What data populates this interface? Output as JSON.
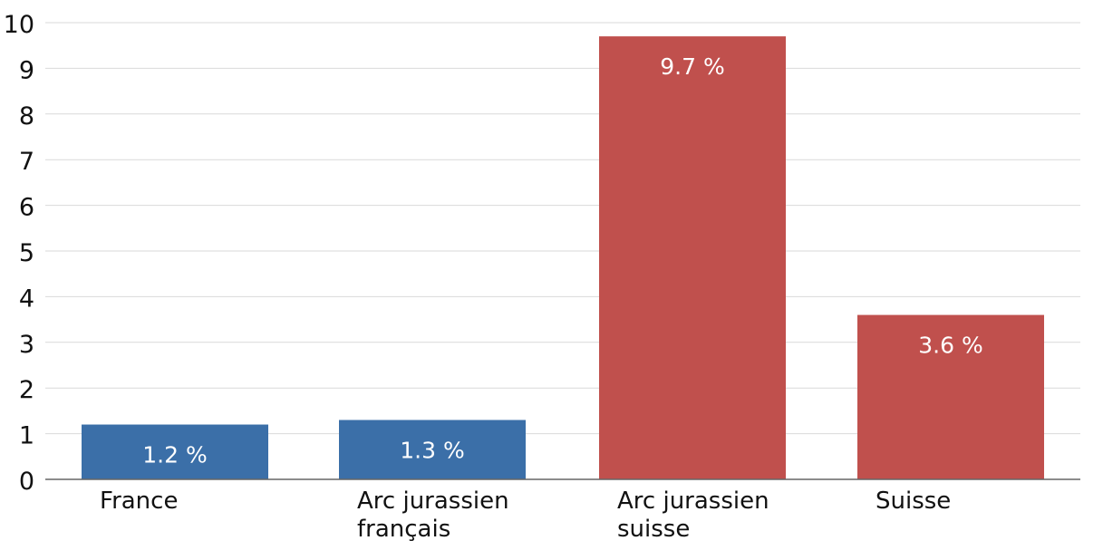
{
  "chart_data": {
    "type": "bar",
    "categories": [
      [
        "France"
      ],
      [
        "Arc jurassien",
        "français"
      ],
      [
        "Arc jurassien",
        "suisse"
      ],
      [
        "Suisse"
      ]
    ],
    "values": [
      1.2,
      1.3,
      9.7,
      3.6
    ],
    "data_labels": [
      "1.2 %",
      "1.3 %",
      "9.7 %",
      "3.6 %"
    ],
    "bar_colors": [
      "#3b6fa8",
      "#3b6fa8",
      "#c0504d",
      "#c0504d"
    ],
    "ylim": [
      0,
      10
    ],
    "yticks": [
      "0",
      "1",
      "2",
      "3",
      "4",
      "5",
      "6",
      "7",
      "8",
      "9",
      "10"
    ],
    "grid": true,
    "title": "",
    "xlabel": "",
    "ylabel": ""
  }
}
